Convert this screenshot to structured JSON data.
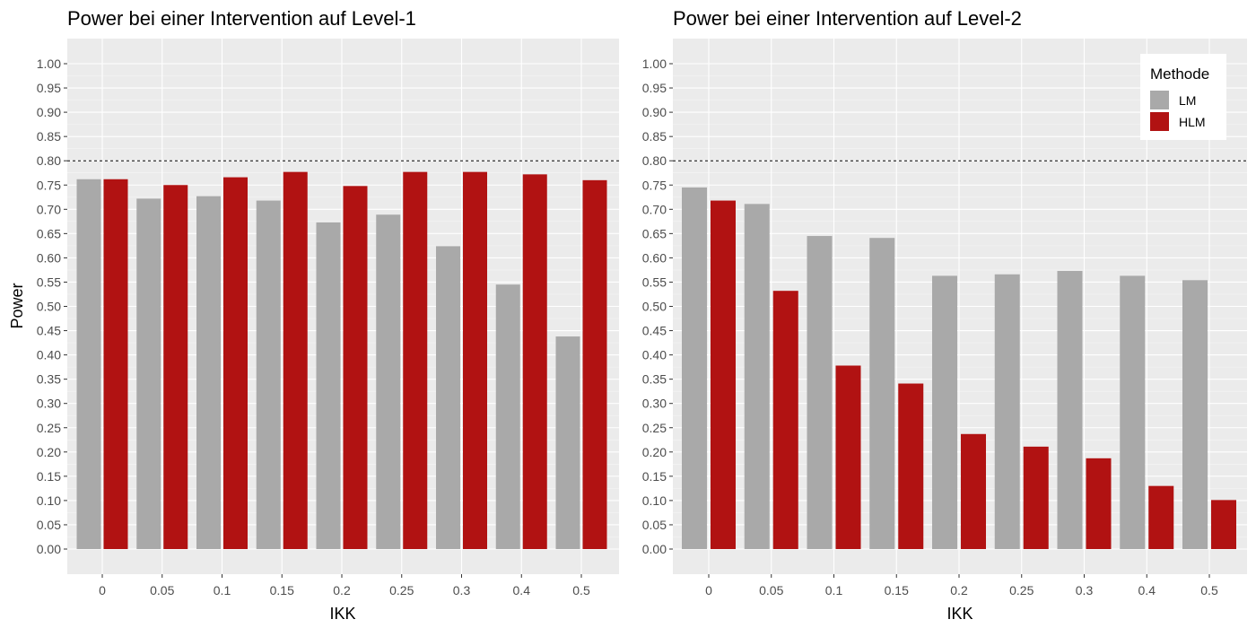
{
  "chart_data": [
    {
      "type": "bar",
      "title": "Power bei einer Intervention auf Level-1",
      "xlabel": "IKK",
      "ylabel": "Power",
      "categories": [
        "0",
        "0.05",
        "0.1",
        "0.15",
        "0.2",
        "0.25",
        "0.3",
        "0.4",
        "0.5"
      ],
      "series": [
        {
          "name": "LM",
          "color": "#a9a9a9",
          "values": [
            0.762,
            0.722,
            0.727,
            0.718,
            0.673,
            0.689,
            0.624,
            0.545,
            0.438
          ]
        },
        {
          "name": "HLM",
          "color": "#b11212",
          "values": [
            0.762,
            0.75,
            0.766,
            0.777,
            0.748,
            0.777,
            0.777,
            0.772,
            0.76
          ]
        }
      ],
      "ylim": [
        0,
        1
      ],
      "yticks": [
        "0.00",
        "0.05",
        "0.10",
        "0.15",
        "0.20",
        "0.25",
        "0.30",
        "0.35",
        "0.40",
        "0.45",
        "0.50",
        "0.55",
        "0.60",
        "0.65",
        "0.70",
        "0.75",
        "0.80",
        "0.85",
        "0.90",
        "0.95",
        "1.00"
      ],
      "reference_line": {
        "y": 0.8,
        "style": "dashed"
      },
      "grid": true,
      "legend": null
    },
    {
      "type": "bar",
      "title": "Power bei einer Intervention auf Level-2",
      "xlabel": "IKK",
      "ylabel": "",
      "categories": [
        "0",
        "0.05",
        "0.1",
        "0.15",
        "0.2",
        "0.25",
        "0.3",
        "0.4",
        "0.5"
      ],
      "series": [
        {
          "name": "LM",
          "color": "#a9a9a9",
          "values": [
            0.745,
            0.711,
            0.645,
            0.641,
            0.563,
            0.566,
            0.573,
            0.563,
            0.554
          ]
        },
        {
          "name": "HLM",
          "color": "#b11212",
          "values": [
            0.718,
            0.532,
            0.378,
            0.341,
            0.237,
            0.211,
            0.187,
            0.13,
            0.101
          ]
        }
      ],
      "ylim": [
        0,
        1
      ],
      "yticks": [
        "0.00",
        "0.05",
        "0.10",
        "0.15",
        "0.20",
        "0.25",
        "0.30",
        "0.35",
        "0.40",
        "0.45",
        "0.50",
        "0.55",
        "0.60",
        "0.65",
        "0.70",
        "0.75",
        "0.80",
        "0.85",
        "0.90",
        "0.95",
        "1.00"
      ],
      "reference_line": {
        "y": 0.8,
        "style": "dashed"
      },
      "grid": true,
      "legend": {
        "title": "Methode",
        "position": "top-right"
      }
    }
  ]
}
